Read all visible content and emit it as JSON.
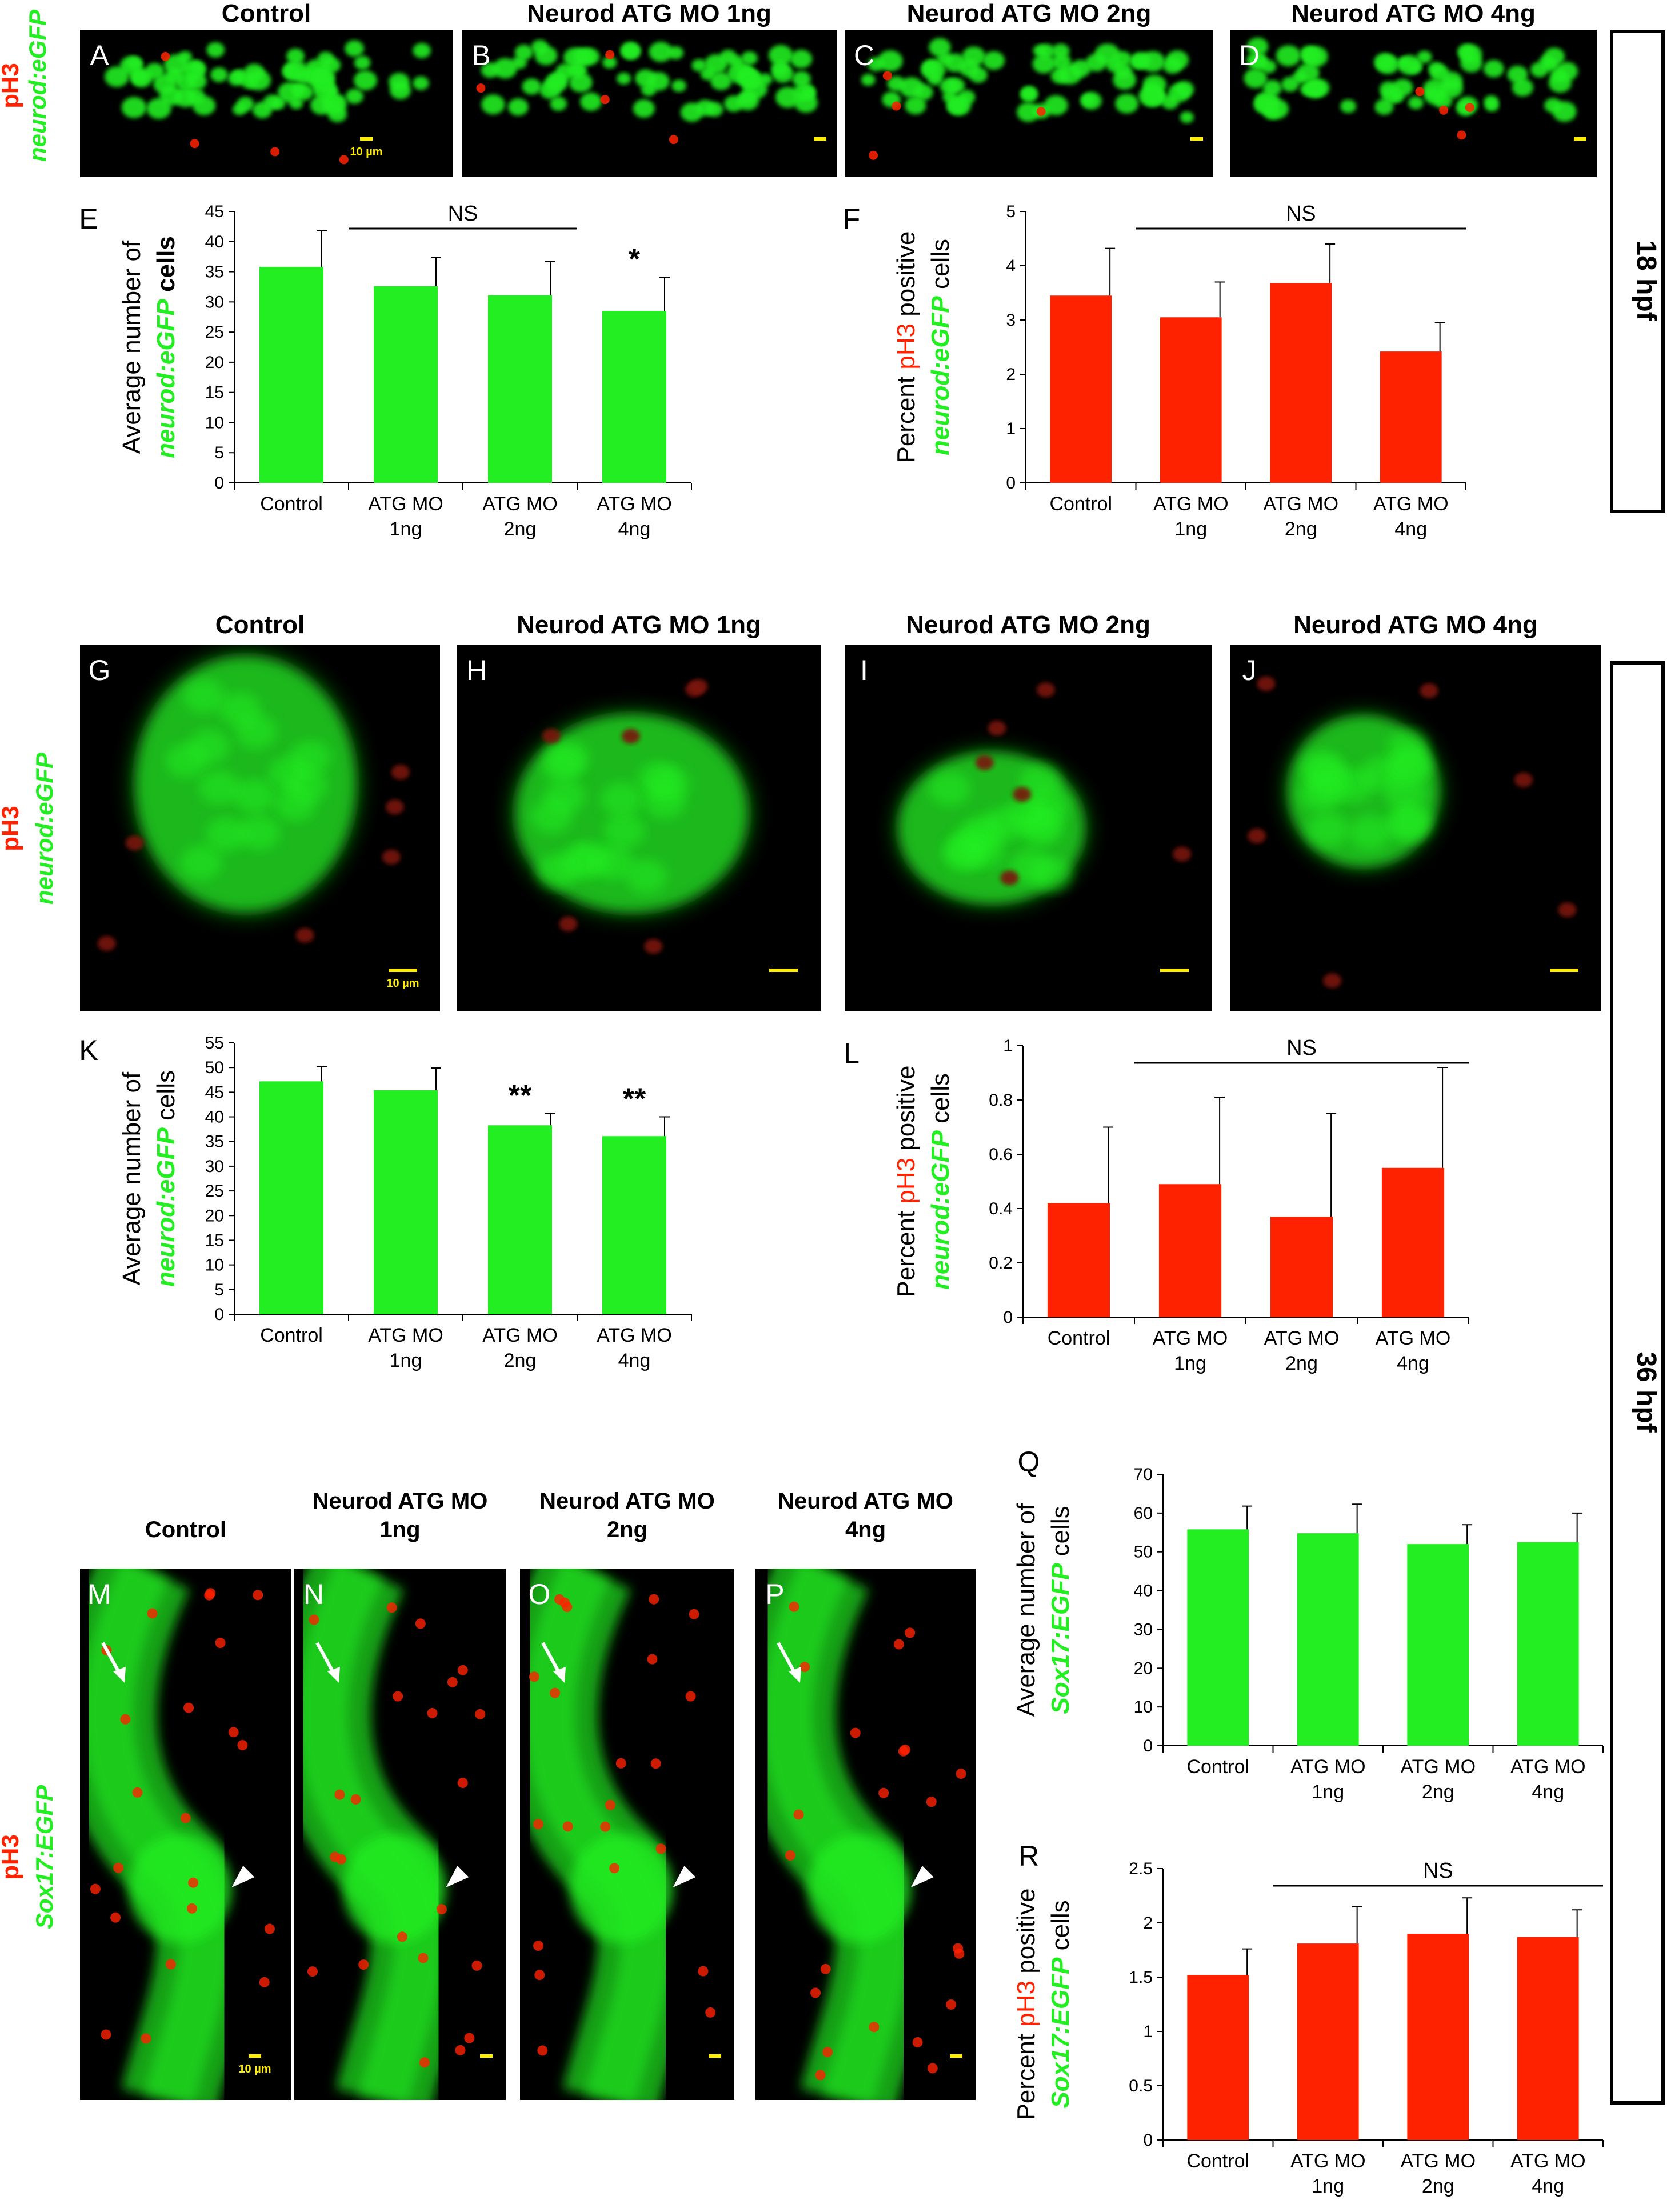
{
  "figure": {
    "timepoints": [
      "18 hpf",
      "36 hpf"
    ],
    "row1": {
      "column_titles": [
        "Control",
        "Neurod ATG MO 1ng",
        "Neurod ATG MO 2ng",
        "Neurod ATG MO 4ng"
      ],
      "panel_letters": [
        "A",
        "B",
        "C",
        "D"
      ],
      "stain_label_red": "pH3",
      "stain_label_green": "neurod:eGFP",
      "scale_bar_label": "10 µm"
    },
    "row2": {
      "column_titles": [
        "Control",
        "Neurod ATG MO 1ng",
        "Neurod ATG MO 2ng",
        "Neurod ATG MO 4ng"
      ],
      "panel_letters": [
        "G",
        "H",
        "I",
        "J"
      ],
      "stain_label_red": "pH3",
      "stain_label_green": "neurod:eGFP",
      "scale_bar_label": "10 µm"
    },
    "row3": {
      "column_titles": [
        [
          "Control"
        ],
        [
          "Neurod ATG MO",
          "1ng"
        ],
        [
          "Neurod ATG MO",
          "2ng"
        ],
        [
          "Neurod ATG MO",
          "4ng"
        ]
      ],
      "panel_letters": [
        "M",
        "N",
        "O",
        "P"
      ],
      "stain_label_red": "pH3",
      "stain_label_green": "Sox17:EGFP",
      "scale_bar_label": "10 µm"
    },
    "colors": {
      "green": "#22ee22",
      "red": "#ff2200",
      "image_bg": "#000000"
    }
  },
  "chart_data": [
    {
      "panel": "E",
      "type": "bar",
      "color": "#22ee22",
      "categories": [
        [
          "Control"
        ],
        [
          "ATG MO",
          "1ng"
        ],
        [
          "ATG MO",
          "2ng"
        ],
        [
          "ATG MO",
          "4ng"
        ]
      ],
      "values": [
        35.8,
        32.6,
        31.1,
        28.5
      ],
      "errors": [
        6.0,
        4.8,
        5.6,
        5.6
      ],
      "ylim": [
        0,
        45
      ],
      "yticks": [
        0,
        5,
        10,
        15,
        20,
        25,
        30,
        35,
        40,
        45
      ],
      "ylabel_lines": [
        [
          {
            "t": "Average number of",
            "c": "black",
            "s": "normal"
          }
        ],
        [
          {
            "t": "neurod:eGFP",
            "c": "green",
            "s": "bolditalic"
          },
          {
            "t": " cells",
            "c": "black",
            "s": "bold"
          }
        ]
      ],
      "bar_annotations": [
        {
          "index": 3,
          "text": "*"
        }
      ],
      "bracket": {
        "from": 1,
        "to": 2,
        "text": "NS"
      }
    },
    {
      "panel": "F",
      "type": "bar",
      "color": "#ff2200",
      "categories": [
        [
          "Control"
        ],
        [
          "ATG MO",
          "1ng"
        ],
        [
          "ATG MO",
          "2ng"
        ],
        [
          "ATG MO",
          "4ng"
        ]
      ],
      "values": [
        3.45,
        3.05,
        3.68,
        2.42
      ],
      "errors": [
        0.87,
        0.65,
        0.72,
        0.53
      ],
      "ylim": [
        0,
        5
      ],
      "yticks": [
        0,
        1,
        2,
        3,
        4,
        5
      ],
      "ylabel_lines": [
        [
          {
            "t": "Percent ",
            "c": "black",
            "s": "normal"
          },
          {
            "t": "pH3",
            "c": "red",
            "s": "normal"
          },
          {
            "t": " positive",
            "c": "black",
            "s": "normal"
          }
        ],
        [
          {
            "t": "neurod:eGFP",
            "c": "green",
            "s": "bolditalic"
          },
          {
            "t": " cells",
            "c": "black",
            "s": "normal"
          }
        ]
      ],
      "bar_annotations": [],
      "bracket": {
        "from": 1,
        "to": 3,
        "text": "NS"
      }
    },
    {
      "panel": "K",
      "type": "bar",
      "color": "#22ee22",
      "categories": [
        [
          "Control"
        ],
        [
          "ATG MO",
          "1ng"
        ],
        [
          "ATG MO",
          "2ng"
        ],
        [
          "ATG MO",
          "4ng"
        ]
      ],
      "values": [
        47.2,
        45.4,
        38.3,
        36.1
      ],
      "errors": [
        3.0,
        4.5,
        2.4,
        3.9
      ],
      "ylim": [
        0,
        55
      ],
      "yticks": [
        0,
        5,
        10,
        15,
        20,
        25,
        30,
        35,
        40,
        45,
        50,
        55
      ],
      "ylabel_lines": [
        [
          {
            "t": "Average number of",
            "c": "black",
            "s": "normal"
          }
        ],
        [
          {
            "t": "neurod:eGFP",
            "c": "green",
            "s": "bolditalic"
          },
          {
            "t": " cells",
            "c": "black",
            "s": "normal"
          }
        ]
      ],
      "bar_annotations": [
        {
          "index": 2,
          "text": "**"
        },
        {
          "index": 3,
          "text": "**"
        }
      ],
      "bracket": null
    },
    {
      "panel": "L",
      "type": "bar",
      "color": "#ff2200",
      "categories": [
        [
          "Control"
        ],
        [
          "ATG MO",
          "1ng"
        ],
        [
          "ATG MO",
          "2ng"
        ],
        [
          "ATG MO",
          "4ng"
        ]
      ],
      "values": [
        0.42,
        0.49,
        0.37,
        0.55
      ],
      "errors": [
        0.28,
        0.32,
        0.38,
        0.37
      ],
      "ylim": [
        0,
        1
      ],
      "yticks": [
        0,
        0.2,
        0.4,
        0.6,
        0.8,
        1
      ],
      "ylabel_lines": [
        [
          {
            "t": "Percent ",
            "c": "black",
            "s": "normal"
          },
          {
            "t": "pH3",
            "c": "red",
            "s": "normal"
          },
          {
            "t": " positive",
            "c": "black",
            "s": "normal"
          }
        ],
        [
          {
            "t": "neurod:eGFP",
            "c": "green",
            "s": "bolditalic"
          },
          {
            "t": " cells",
            "c": "black",
            "s": "normal"
          }
        ]
      ],
      "bar_annotations": [],
      "bracket": {
        "from": 1,
        "to": 3,
        "text": "NS"
      }
    },
    {
      "panel": "Q",
      "type": "bar",
      "color": "#22ee22",
      "categories": [
        [
          "Control"
        ],
        [
          "ATG MO",
          "1ng"
        ],
        [
          "ATG MO",
          "2ng"
        ],
        [
          "ATG MO",
          "4ng"
        ]
      ],
      "values": [
        55.8,
        54.8,
        52.0,
        52.5
      ],
      "errors": [
        6.0,
        7.5,
        5.0,
        7.5
      ],
      "ylim": [
        0,
        70
      ],
      "yticks": [
        0,
        10,
        20,
        30,
        40,
        50,
        60,
        70
      ],
      "ylabel_lines": [
        [
          {
            "t": "Average number of",
            "c": "black",
            "s": "normal"
          }
        ],
        [
          {
            "t": "Sox17:EGFP",
            "c": "green",
            "s": "bolditalic"
          },
          {
            "t": " cells",
            "c": "black",
            "s": "normal"
          }
        ]
      ],
      "bar_annotations": [],
      "bracket": null
    },
    {
      "panel": "R",
      "type": "bar",
      "color": "#ff2200",
      "categories": [
        [
          "Control"
        ],
        [
          "ATG MO",
          "1ng"
        ],
        [
          "ATG MO",
          "2ng"
        ],
        [
          "ATG MO",
          "4ng"
        ]
      ],
      "values": [
        1.52,
        1.81,
        1.9,
        1.87
      ],
      "errors": [
        0.24,
        0.34,
        0.33,
        0.25
      ],
      "ylim": [
        0,
        2.5
      ],
      "yticks": [
        0,
        0.5,
        1,
        1.5,
        2,
        2.5
      ],
      "ylabel_lines": [
        [
          {
            "t": "Percent ",
            "c": "black",
            "s": "normal"
          },
          {
            "t": "pH3",
            "c": "red",
            "s": "normal"
          },
          {
            "t": " positive",
            "c": "black",
            "s": "normal"
          }
        ],
        [
          {
            "t": "Sox17:EGFP",
            "c": "green",
            "s": "bolditalic"
          },
          {
            "t": " cells",
            "c": "black",
            "s": "normal"
          }
        ]
      ],
      "bar_annotations": [],
      "bracket": {
        "from": 1,
        "to": 3,
        "text": "NS"
      }
    }
  ]
}
